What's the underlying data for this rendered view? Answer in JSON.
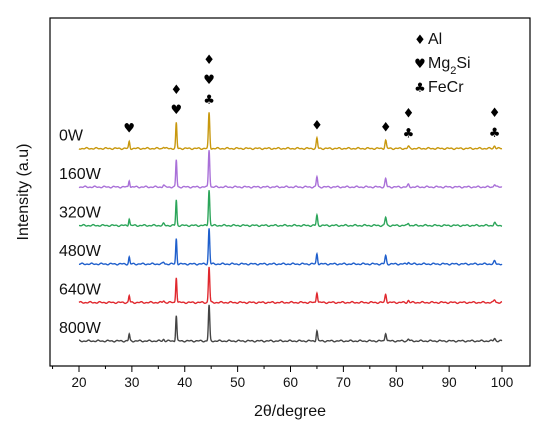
{
  "chart_data": {
    "type": "line",
    "xlabel": "2θ/degree",
    "ylabel": "Intensity  (a.u)",
    "xlim": [
      15,
      102
    ],
    "xticks": [
      20,
      30,
      40,
      50,
      60,
      70,
      80,
      90,
      100
    ],
    "xtick_labels": [
      "20",
      "30",
      "40",
      "50",
      "60",
      "70",
      "80",
      "90",
      "100"
    ],
    "grid": false,
    "y_ticks_visible": false,
    "offset_spacing": 1.0,
    "peaks_2theta": [
      29.5,
      38.4,
      44.6,
      65.0,
      78.0,
      82.3,
      98.6
    ],
    "series": [
      {
        "name": "0W",
        "color": "#c8980e",
        "offset": 5,
        "peak_heights": [
          0.2,
          0.75,
          1.05,
          0.3,
          0.24,
          0.06,
          0.08
        ]
      },
      {
        "name": "160W",
        "color": "#a970d8",
        "offset": 4,
        "peak_heights": [
          0.2,
          0.8,
          1.1,
          0.3,
          0.24,
          0.07,
          0.08
        ]
      },
      {
        "name": "320W",
        "color": "#2ca55a",
        "offset": 3,
        "peak_heights": [
          0.2,
          0.75,
          1.05,
          0.3,
          0.24,
          0.07,
          0.08
        ]
      },
      {
        "name": "480W",
        "color": "#1f5fcc",
        "offset": 2,
        "peak_heights": [
          0.2,
          0.75,
          1.05,
          0.3,
          0.24,
          0.06,
          0.08
        ]
      },
      {
        "name": "640W",
        "color": "#e0282e",
        "offset": 1,
        "peak_heights": [
          0.2,
          0.75,
          1.05,
          0.3,
          0.24,
          0.06,
          0.08
        ]
      },
      {
        "name": "800W",
        "color": "#444444",
        "offset": 0,
        "peak_heights": [
          0.2,
          0.75,
          1.05,
          0.3,
          0.24,
          0.06,
          0.08
        ]
      }
    ],
    "legend": {
      "placement": "top-right",
      "entries": [
        {
          "symbol": "♦",
          "label": "Al"
        },
        {
          "symbol": "♥",
          "label": "Mg",
          "subscript": "2",
          "suffix": "Si"
        },
        {
          "symbol": "♣",
          "label": "FeCr"
        }
      ]
    },
    "annotations": [
      {
        "x": 29.5,
        "symbols": [
          "♥"
        ]
      },
      {
        "x": 38.4,
        "symbols": [
          "♦",
          "♥"
        ]
      },
      {
        "x": 44.6,
        "symbols": [
          "♦",
          "♥",
          "♣"
        ]
      },
      {
        "x": 65.0,
        "symbols": [
          "♦"
        ]
      },
      {
        "x": 78.0,
        "symbols": [
          "♦"
        ]
      },
      {
        "x": 82.3,
        "symbols": [
          "♦",
          "♣"
        ]
      },
      {
        "x": 98.6,
        "symbols": [
          "♦",
          "♣"
        ]
      }
    ]
  }
}
